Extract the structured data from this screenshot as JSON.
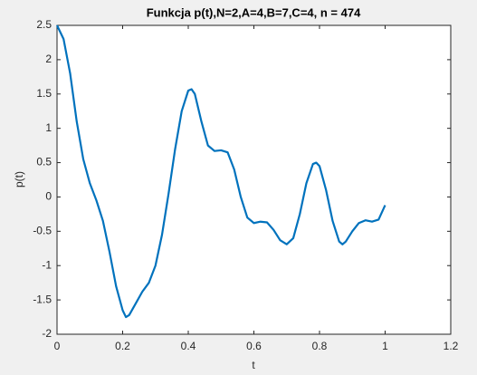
{
  "chart_data": {
    "type": "line",
    "title": "Funkcja p(t),N=2,A=4,B=7,C=4, n = 474",
    "xlabel": "t",
    "ylabel": "p(t)",
    "x": [
      0,
      0.02,
      0.04,
      0.06,
      0.08,
      0.1,
      0.12,
      0.14,
      0.16,
      0.18,
      0.2,
      0.21,
      0.22,
      0.24,
      0.26,
      0.28,
      0.3,
      0.32,
      0.34,
      0.36,
      0.38,
      0.4,
      0.41,
      0.42,
      0.44,
      0.46,
      0.48,
      0.5,
      0.52,
      0.54,
      0.56,
      0.58,
      0.6,
      0.62,
      0.64,
      0.66,
      0.68,
      0.7,
      0.72,
      0.74,
      0.76,
      0.78,
      0.79,
      0.8,
      0.82,
      0.84,
      0.86,
      0.87,
      0.88,
      0.9,
      0.92,
      0.94,
      0.96,
      0.98,
      1.0
    ],
    "series": [
      {
        "name": "p(t)",
        "color": "#0072bd",
        "values": [
          2.5,
          2.3,
          1.8,
          1.1,
          0.55,
          0.2,
          -0.05,
          -0.35,
          -0.8,
          -1.3,
          -1.65,
          -1.75,
          -1.72,
          -1.55,
          -1.38,
          -1.25,
          -1.0,
          -0.55,
          0.05,
          0.7,
          1.25,
          1.55,
          1.57,
          1.5,
          1.1,
          0.75,
          0.67,
          0.68,
          0.65,
          0.4,
          0.0,
          -0.3,
          -0.38,
          -0.36,
          -0.37,
          -0.48,
          -0.63,
          -0.69,
          -0.6,
          -0.25,
          0.2,
          0.48,
          0.5,
          0.45,
          0.1,
          -0.35,
          -0.65,
          -0.69,
          -0.65,
          -0.5,
          -0.38,
          -0.34,
          -0.36,
          -0.33,
          -0.12
        ]
      }
    ],
    "xlim": [
      0,
      1.2
    ],
    "xticks": [
      0,
      0.2,
      0.4,
      0.6,
      0.8,
      1,
      1.2
    ],
    "ylim": [
      -2,
      2.5
    ],
    "yticks": [
      -2,
      -1.5,
      -1,
      -0.5,
      0,
      0.5,
      1,
      1.5,
      2,
      2.5
    ],
    "grid": false
  }
}
